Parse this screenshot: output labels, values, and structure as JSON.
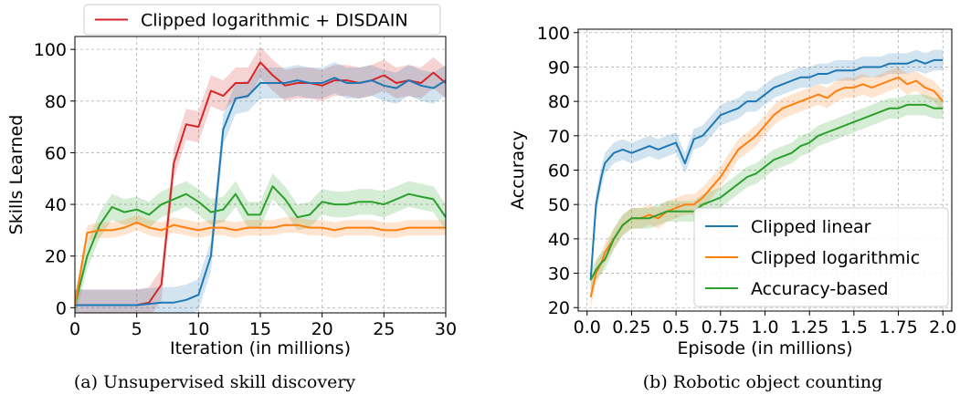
{
  "colors": {
    "blue": "#1f77b4",
    "orange": "#ff7f0e",
    "green": "#2ca02c",
    "red": "#d62728",
    "grid": "#b0b0b0"
  },
  "chart_data": [
    {
      "type": "line",
      "caption": "(a) Unsupervised skill discovery",
      "xlabel": "Iteration (in millions)",
      "ylabel": "Skills Learned",
      "xlim": [
        0,
        30
      ],
      "ylim": [
        -2,
        105
      ],
      "xticks": [
        0,
        5,
        10,
        15,
        20,
        25,
        30
      ],
      "yticks": [
        0,
        20,
        40,
        60,
        80,
        100
      ],
      "grid": true,
      "legend_position": "top-center (above axes)",
      "legend": [
        "Clipped logarithmic + DISDAIN"
      ],
      "series": [
        {
          "name": "Clipped logarithmic + DISDAIN",
          "color": "red",
          "x": [
            0,
            1,
            2,
            3,
            4,
            5,
            6,
            7,
            8,
            9,
            10,
            11,
            12,
            13,
            14,
            15,
            16,
            17,
            18,
            19,
            20,
            21,
            22,
            23,
            24,
            25,
            26,
            27,
            28,
            29,
            30
          ],
          "y": [
            1,
            1,
            1,
            1,
            1,
            1,
            2,
            9,
            56,
            71,
            70,
            84,
            82,
            87,
            87,
            95,
            90,
            86,
            87,
            87,
            86,
            88,
            88,
            87,
            88,
            90,
            87,
            88,
            87,
            91,
            87
          ],
          "band": 6
        },
        {
          "name": "",
          "color": "blue",
          "x": [
            0,
            1,
            2,
            3,
            4,
            5,
            6,
            7,
            8,
            9,
            10,
            11,
            12,
            13,
            14,
            15,
            16,
            17,
            18,
            19,
            20,
            21,
            22,
            23,
            24,
            25,
            26,
            27,
            28,
            29,
            30
          ],
          "y": [
            1,
            1,
            1,
            1,
            1,
            1,
            1.5,
            2,
            2,
            3,
            5,
            20,
            69,
            81,
            82,
            87,
            87,
            87,
            88,
            87,
            87,
            89,
            87,
            87,
            88,
            86,
            85,
            88,
            86,
            85,
            88
          ],
          "band": 6
        },
        {
          "name": "",
          "color": "green",
          "x": [
            0,
            1,
            2,
            3,
            4,
            5,
            6,
            7,
            8,
            9,
            10,
            11,
            12,
            13,
            14,
            15,
            16,
            17,
            18,
            19,
            20,
            21,
            22,
            23,
            24,
            25,
            26,
            27,
            28,
            29,
            30
          ],
          "y": [
            1,
            20,
            32,
            39,
            37,
            38,
            36,
            40,
            42,
            44,
            41,
            37,
            38,
            44,
            36,
            36,
            47,
            42,
            35,
            36,
            41,
            40,
            40,
            41,
            41,
            40,
            42,
            44,
            43,
            42,
            35
          ],
          "band": 5
        },
        {
          "name": "",
          "color": "orange",
          "x": [
            0,
            1,
            2,
            3,
            4,
            5,
            6,
            7,
            8,
            9,
            10,
            11,
            12,
            13,
            14,
            15,
            16,
            17,
            18,
            19,
            20,
            21,
            22,
            23,
            24,
            25,
            26,
            27,
            28,
            29,
            30
          ],
          "y": [
            1,
            29,
            30,
            30,
            31,
            33,
            31,
            30,
            32,
            31,
            30,
            31,
            31,
            30,
            31,
            31,
            31,
            32,
            32,
            31,
            31,
            30,
            31,
            31,
            31,
            30,
            30,
            31,
            31,
            31,
            31
          ],
          "band": 3
        }
      ]
    },
    {
      "type": "line",
      "caption": "(b) Robotic object counting",
      "xlabel": "Episode (in millions)",
      "ylabel": "Accuracy",
      "xlim": [
        -0.05,
        2.05
      ],
      "ylim": [
        19,
        101
      ],
      "xticks": [
        0.0,
        0.25,
        0.5,
        0.75,
        1.0,
        1.25,
        1.5,
        1.75,
        2.0
      ],
      "xtick_labels": [
        "0.0",
        "0.25",
        "0.5",
        "0.75",
        "1.0",
        "1.25",
        "1.5",
        "1.75",
        "2.0"
      ],
      "yticks": [
        20,
        30,
        40,
        50,
        60,
        70,
        80,
        90,
        100
      ],
      "grid": true,
      "legend_position": "lower-right",
      "legend": [
        "Clipped linear",
        "Clipped logarithmic",
        "Accuracy-based"
      ],
      "series": [
        {
          "name": "Clipped linear",
          "color": "blue",
          "x": [
            0.02,
            0.05,
            0.08,
            0.1,
            0.15,
            0.2,
            0.25,
            0.3,
            0.35,
            0.4,
            0.45,
            0.5,
            0.55,
            0.6,
            0.65,
            0.7,
            0.75,
            0.8,
            0.85,
            0.9,
            0.95,
            1.0,
            1.05,
            1.1,
            1.15,
            1.2,
            1.25,
            1.3,
            1.35,
            1.4,
            1.45,
            1.5,
            1.55,
            1.6,
            1.65,
            1.7,
            1.75,
            1.8,
            1.85,
            1.9,
            1.95,
            2.0
          ],
          "y": [
            28,
            50,
            58,
            62,
            65,
            66,
            65,
            66,
            67,
            66,
            67,
            68,
            62,
            69,
            70,
            73,
            76,
            77,
            78,
            80,
            80,
            82,
            84,
            85,
            86,
            87,
            87,
            88,
            88,
            89,
            89,
            89,
            90,
            90,
            90,
            91,
            91,
            91,
            92,
            91,
            92,
            92
          ],
          "band": 3
        },
        {
          "name": "Clipped logarithmic",
          "color": "orange",
          "x": [
            0.02,
            0.05,
            0.08,
            0.1,
            0.15,
            0.2,
            0.25,
            0.3,
            0.35,
            0.4,
            0.45,
            0.5,
            0.55,
            0.6,
            0.65,
            0.7,
            0.75,
            0.8,
            0.85,
            0.9,
            0.95,
            1.0,
            1.05,
            1.1,
            1.15,
            1.2,
            1.25,
            1.3,
            1.35,
            1.4,
            1.45,
            1.5,
            1.55,
            1.6,
            1.65,
            1.7,
            1.75,
            1.8,
            1.85,
            1.9,
            1.95,
            2.0
          ],
          "y": [
            23,
            30,
            33,
            36,
            40,
            44,
            46,
            46,
            47,
            46,
            48,
            49,
            50,
            50,
            52,
            55,
            58,
            62,
            66,
            68,
            70,
            73,
            76,
            78,
            79,
            80,
            81,
            82,
            81,
            83,
            84,
            84,
            85,
            84,
            85,
            86,
            87,
            85,
            86,
            84,
            83,
            80
          ],
          "band": 3
        },
        {
          "name": "Accuracy-based",
          "color": "green",
          "x": [
            0.02,
            0.05,
            0.08,
            0.1,
            0.15,
            0.2,
            0.25,
            0.3,
            0.35,
            0.4,
            0.45,
            0.5,
            0.55,
            0.6,
            0.65,
            0.7,
            0.75,
            0.8,
            0.85,
            0.9,
            0.95,
            1.0,
            1.05,
            1.1,
            1.15,
            1.2,
            1.25,
            1.3,
            1.35,
            1.4,
            1.45,
            1.5,
            1.55,
            1.6,
            1.65,
            1.7,
            1.75,
            1.8,
            1.85,
            1.9,
            1.95,
            2.0
          ],
          "y": [
            28,
            31,
            33,
            34,
            40,
            44,
            46,
            46,
            46,
            47,
            48,
            48,
            48,
            48,
            50,
            51,
            52,
            54,
            56,
            58,
            59,
            61,
            63,
            64,
            65,
            67,
            68,
            70,
            71,
            72,
            73,
            74,
            75,
            76,
            77,
            78,
            78,
            79,
            79,
            79,
            78,
            78
          ],
          "band": 3
        }
      ]
    }
  ]
}
